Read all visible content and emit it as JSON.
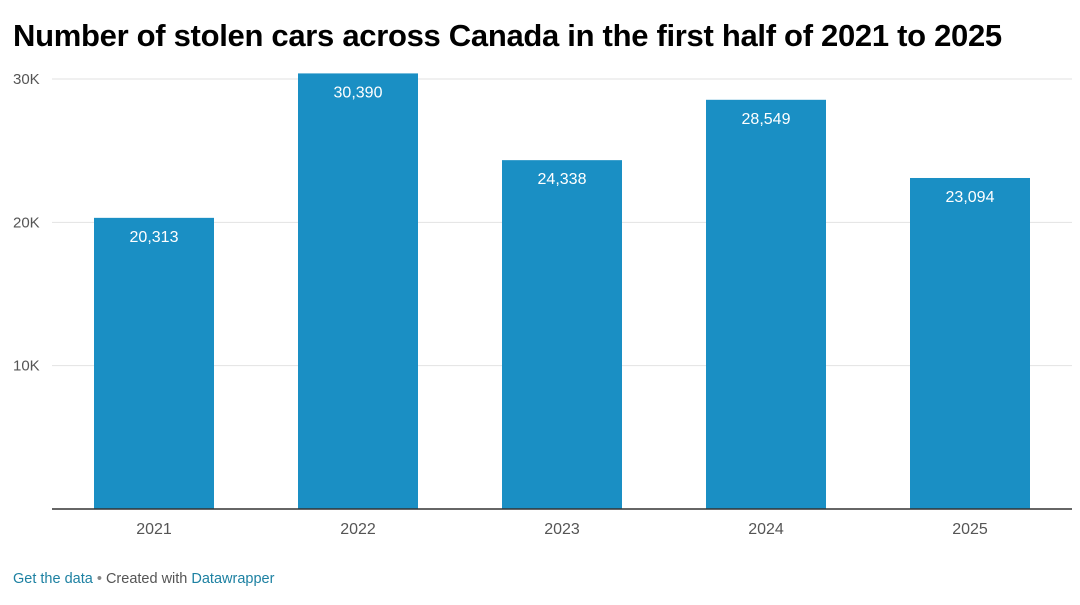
{
  "colors": {
    "bar": "#1a8fc4",
    "grid": "#e2e2e2",
    "axis": "#333333",
    "tick_text": "#555555",
    "label_text": "#ffffff",
    "link": "#1d81a2"
  },
  "chart_data": {
    "type": "bar",
    "title": "Number of stolen cars across Canada in the first half of 2021 to 2025",
    "categories": [
      "2021",
      "2022",
      "2023",
      "2024",
      "2025"
    ],
    "values": [
      20313,
      30390,
      24338,
      28549,
      23094
    ],
    "value_labels": [
      "20,313",
      "30,390",
      "24,338",
      "28,549",
      "23,094"
    ],
    "y_ticks": [
      10000,
      20000,
      30000
    ],
    "y_tick_labels": [
      "10K",
      "20K",
      "30K"
    ],
    "ylim": [
      0,
      30000
    ],
    "grid": true,
    "legend": "none"
  },
  "footer": {
    "get_data": "Get the data",
    "separator": "•",
    "created_with": "Created with",
    "tool": "Datawrapper"
  }
}
